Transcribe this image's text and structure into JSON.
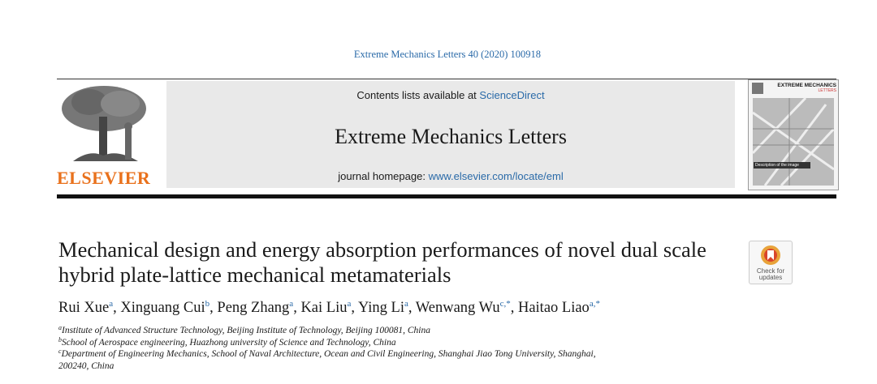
{
  "header": {
    "citation": "Extreme Mechanics Letters 40 (2020) 100918",
    "contents_prefix": "Contents lists available at ",
    "contents_link": "ScienceDirect",
    "journal": "Extreme Mechanics Letters",
    "homepage_prefix": "journal homepage: ",
    "homepage_link": "www.elsevier.com/locate/eml",
    "publisher": "ELSEVIER",
    "cover_title": "EXTREME MECHANICS",
    "cover_subtitle": "LETTERS",
    "cover_description": "Description of the image"
  },
  "article": {
    "title": "Mechanical design and energy absorption performances of novel dual scale hybrid plate-lattice mechanical metamaterials",
    "check_updates": [
      "Check for",
      "updates"
    ],
    "separator": ", ",
    "authors": [
      {
        "name": "Rui Xue",
        "sup": "a"
      },
      {
        "name": "Xinguang Cui",
        "sup": "b"
      },
      {
        "name": "Peng Zhang",
        "sup": "a"
      },
      {
        "name": "Kai Liu",
        "sup": "a"
      },
      {
        "name": "Ying Li",
        "sup": "a"
      },
      {
        "name": "Wenwang Wu",
        "sup": "c,*"
      },
      {
        "name": "Haitao Liao",
        "sup": "a,*"
      }
    ],
    "affiliations": [
      {
        "label": "a",
        "text": "Institute of Advanced Structure Technology, Beijing Institute of Technology, Beijing 100081, China"
      },
      {
        "label": "b",
        "text": "School of Aerospace engineering, Huazhong university of Science and Technology, China"
      },
      {
        "label": "c",
        "text": "Department of Engineering Mechanics, School of Naval Architecture, Ocean and Civil Engineering, Shanghai Jiao Tong University, Shanghai, 200240, China"
      }
    ]
  }
}
